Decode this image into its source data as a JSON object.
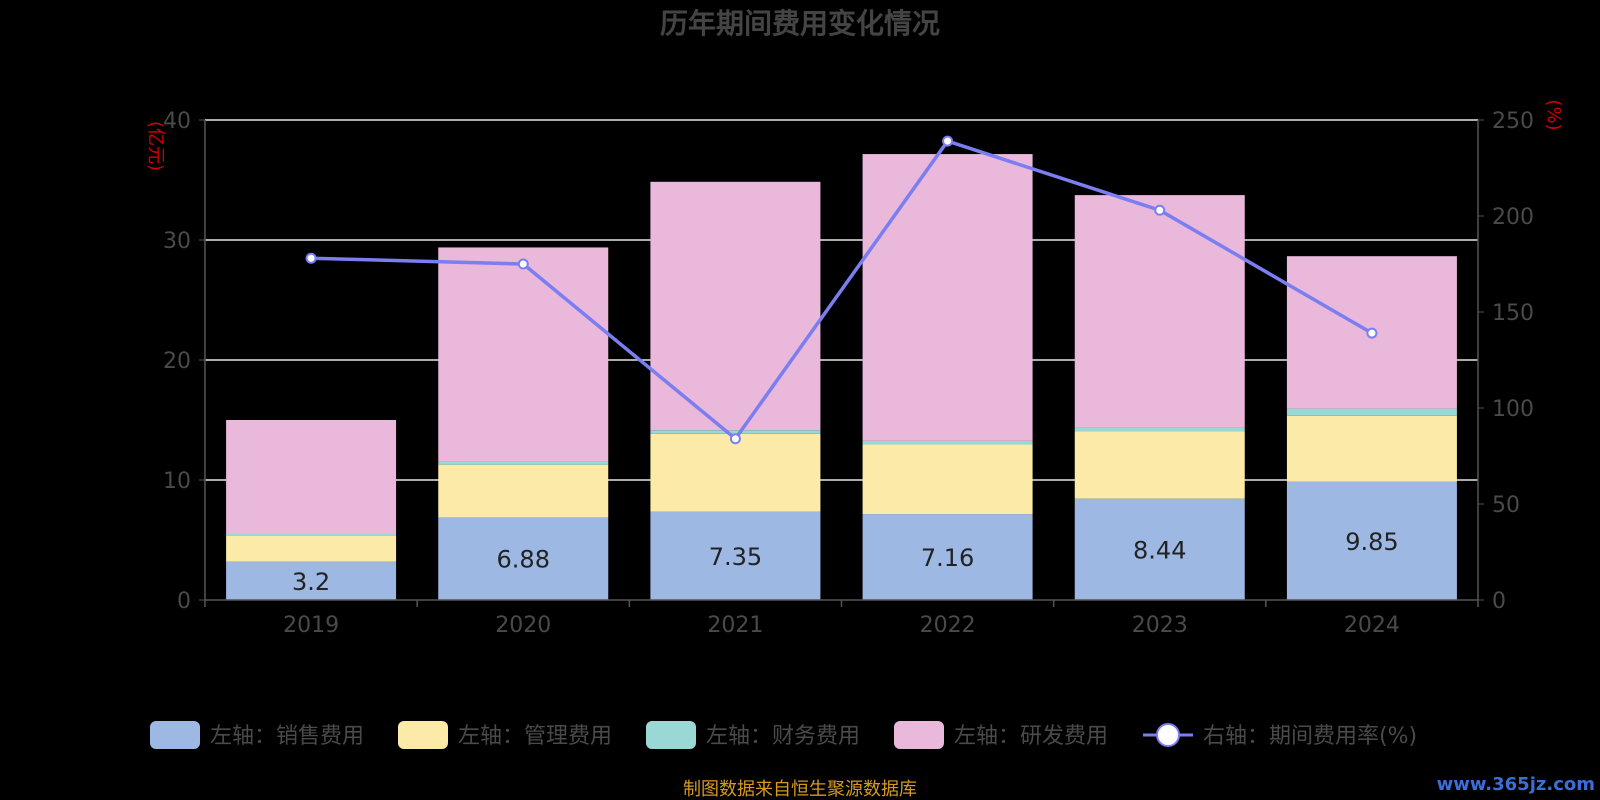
{
  "chart_data": {
    "type": "bar",
    "title": "历年期间费用变化情况",
    "categories": [
      "2019",
      "2020",
      "2021",
      "2022",
      "2023",
      "2024"
    ],
    "stacked": true,
    "series": [
      {
        "name": "左轴：销售费用",
        "axis": "left",
        "color": "#9db8e3",
        "values": [
          3.2,
          6.88,
          7.35,
          7.16,
          8.44,
          9.85
        ],
        "labels": [
          "3.2",
          "6.88",
          "7.35",
          "7.16",
          "8.44",
          "9.85"
        ]
      },
      {
        "name": "左轴：管理费用",
        "axis": "left",
        "color": "#fbeaa8",
        "values": [
          2.2,
          4.4,
          6.5,
          5.8,
          5.6,
          5.5
        ]
      },
      {
        "name": "左轴：财务费用",
        "axis": "left",
        "color": "#9ad8d6",
        "values": [
          0.1,
          0.3,
          0.3,
          0.3,
          0.3,
          0.6
        ]
      },
      {
        "name": "左轴：研发费用",
        "axis": "left",
        "color": "#e9b8da",
        "values": [
          9.5,
          17.8,
          20.7,
          23.9,
          19.4,
          12.7
        ]
      },
      {
        "name": "右轴：期间费用率(%)",
        "axis": "right",
        "type": "line",
        "color": "#7b7ef0",
        "values": [
          178,
          175,
          84,
          239,
          203,
          139
        ]
      }
    ],
    "yleft": {
      "unit": "(亿元)",
      "ylim": [
        0,
        40
      ],
      "ticks": [
        "0",
        "10",
        "20",
        "30",
        "40"
      ]
    },
    "yright": {
      "unit": "(%)",
      "ylim": [
        0,
        250
      ],
      "ticks": [
        "0",
        "50",
        "100",
        "150",
        "200",
        "250"
      ]
    },
    "grid": true,
    "legend_position": "bottom"
  },
  "source_note": "制图数据来自恒生聚源数据库",
  "watermark": "www.365jz.com"
}
